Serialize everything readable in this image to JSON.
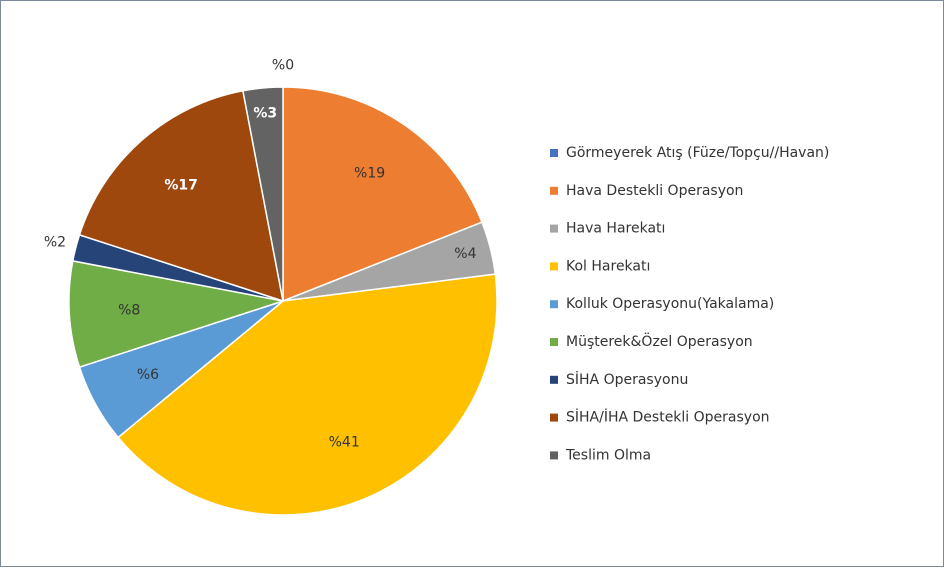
{
  "chart_data": {
    "type": "pie",
    "categories": [
      "Görmeyerek Atış (Füze/Topçu//Havan)",
      "Hava Destekli Operasyon",
      "Hava Harekatı",
      "Kol Harekatı",
      "Kolluk Operasyonu(Yakalama)",
      "Müşterek&Özel Operasyon",
      "SİHA Operasyonu",
      "SİHA/İHA Destekli Operasyon",
      "Teslim Olma"
    ],
    "values": [
      0,
      19,
      4,
      41,
      6,
      8,
      2,
      17,
      3
    ],
    "value_labels": [
      "%0",
      "%19",
      "%4",
      "%41",
      "%6",
      "%8",
      "%2",
      "%17",
      "%3"
    ],
    "colors": [
      "#4472c4",
      "#ed7d31",
      "#a5a5a5",
      "#ffc000",
      "#5b9bd5",
      "#70ad47",
      "#264478",
      "#9e480e",
      "#636363"
    ],
    "legend": "right"
  }
}
